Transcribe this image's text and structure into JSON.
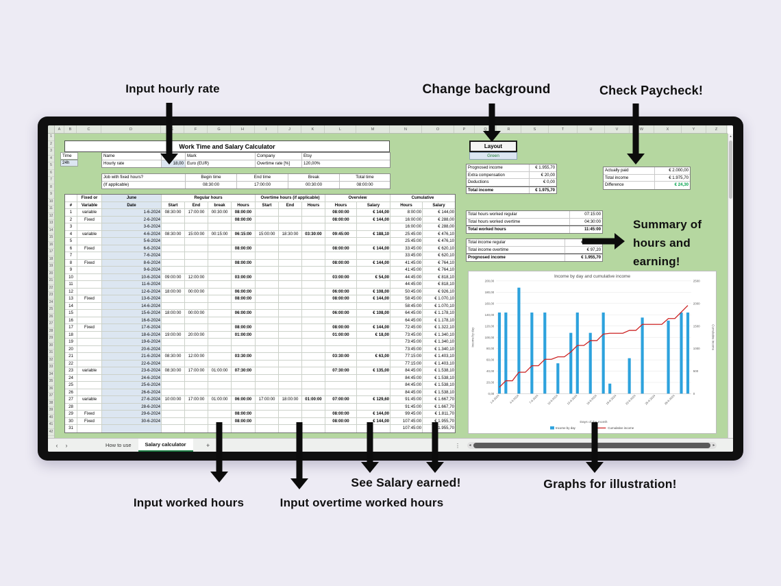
{
  "annotations": {
    "input_hourly_rate": "Input hourly rate",
    "change_background": "Change background",
    "check_paycheck": "Check Paycheck!",
    "summary": "Summary of hours and earning!",
    "input_worked_hours": "Input worked hours",
    "input_overtime_hours": "Input overtime worked hours",
    "see_salary": "See Salary earned!",
    "graphs": "Graphs for illustration!"
  },
  "colors": {
    "sheet_green": "#b5d7a0",
    "highlight_blue": "#dce6f1",
    "bar_blue": "#2da2dd",
    "line_red": "#cc2222",
    "tab_green": "#1e7e45",
    "positive_green": "#00a14b"
  },
  "spreadsheet": {
    "column_letters": [
      "A",
      "B",
      "C",
      "D",
      "E",
      "F",
      "G",
      "H",
      "I",
      "J",
      "K",
      "L",
      "M",
      "N",
      "O",
      "P",
      "Q",
      "R",
      "S",
      "T",
      "U",
      "V",
      "W",
      "X",
      "Y",
      "Z"
    ],
    "row_count": 42,
    "title": "Work Time and Salary Calculator",
    "time": {
      "label": "Time",
      "value": "24h"
    },
    "info": {
      "name_label": "Name",
      "name_value": "",
      "mark": "Mark",
      "company_label": "Company",
      "company_value": "Etsy",
      "hourly_rate_label": "Hourly rate",
      "hourly_rate_value": "18,00",
      "currency": "Euro (EUR)",
      "overtime_rate_label": "Overtime rate [%]",
      "overtime_rate_value": "120,00%"
    },
    "fixed_hours": {
      "q_label": "Job with fixed hours?",
      "if_applicable": "(If applicable)",
      "begin_label": "Begin time",
      "end_label": "End time",
      "break_label": "Break",
      "total_label": "Total time",
      "begin": "08:30:00",
      "end": "17:00:00",
      "break": "00:30:00",
      "total": "08:00:00"
    },
    "table": {
      "group_headers": [
        "",
        "Fixed or",
        "June",
        "Regular hours",
        "Overtime hours (if applicable)",
        "Overview",
        "Cumulative"
      ],
      "sub_headers": [
        "#",
        "Variable",
        "Date",
        "Start",
        "End",
        "break",
        "Hours",
        "Start",
        "End",
        "Hours",
        "Hours",
        "Salary",
        "Hours",
        "Salary"
      ],
      "rows": [
        [
          "1",
          "variable",
          "1-6-2024",
          "08:30:00",
          "17:00:00",
          "00:30:00",
          "08:00:00",
          "",
          "",
          "",
          "08:00:00",
          "€ 144,00",
          "8:00:00",
          "€ 144,00"
        ],
        [
          "2",
          "Fixed",
          "2-6-2024",
          "",
          "",
          "",
          "08:00:00",
          "",
          "",
          "",
          "08:00:00",
          "€ 144,00",
          "16:00:00",
          "€ 288,00"
        ],
        [
          "3",
          "",
          "3-6-2024",
          "",
          "",
          "",
          "",
          "",
          "",
          "",
          "",
          "",
          "16:00:00",
          "€ 288,00"
        ],
        [
          "4",
          "variable",
          "4-6-2024",
          "08:30:00",
          "15:00:00",
          "00:15:00",
          "06:15:00",
          "15:00:00",
          "18:30:00",
          "03:30:00",
          "09:45:00",
          "€ 188,10",
          "25:45:00",
          "€ 476,10"
        ],
        [
          "5",
          "",
          "5-6-2024",
          "",
          "",
          "",
          "",
          "",
          "",
          "",
          "",
          "",
          "25:45:00",
          "€ 476,10"
        ],
        [
          "6",
          "Fixed",
          "6-6-2024",
          "",
          "",
          "",
          "08:00:00",
          "",
          "",
          "",
          "08:00:00",
          "€ 144,00",
          "33:45:00",
          "€ 620,10"
        ],
        [
          "7",
          "",
          "7-6-2024",
          "",
          "",
          "",
          "",
          "",
          "",
          "",
          "",
          "",
          "33:45:00",
          "€ 620,10"
        ],
        [
          "8",
          "Fixed",
          "8-6-2024",
          "",
          "",
          "",
          "08:00:00",
          "",
          "",
          "",
          "08:00:00",
          "€ 144,00",
          "41:45:00",
          "€ 764,10"
        ],
        [
          "9",
          "",
          "9-6-2024",
          "",
          "",
          "",
          "",
          "",
          "",
          "",
          "",
          "",
          "41:45:00",
          "€ 764,10"
        ],
        [
          "10",
          "",
          "10-6-2024",
          "09:00:00",
          "12:00:00",
          "",
          "03:00:00",
          "",
          "",
          "",
          "03:00:00",
          "€ 54,00",
          "44:45:00",
          "€ 818,10"
        ],
        [
          "11",
          "",
          "11-6-2024",
          "",
          "",
          "",
          "",
          "",
          "",
          "",
          "",
          "",
          "44:45:00",
          "€ 818,10"
        ],
        [
          "12",
          "",
          "12-6-2024",
          "18:00:00",
          "00:00:00",
          "",
          "06:00:00",
          "",
          "",
          "",
          "06:00:00",
          "€ 108,00",
          "50:45:00",
          "€ 926,10"
        ],
        [
          "13",
          "Fixed",
          "13-6-2024",
          "",
          "",
          "",
          "08:00:00",
          "",
          "",
          "",
          "08:00:00",
          "€ 144,00",
          "58:45:00",
          "€ 1.070,10"
        ],
        [
          "14",
          "",
          "14-6-2024",
          "",
          "",
          "",
          "",
          "",
          "",
          "",
          "",
          "",
          "58:45:00",
          "€ 1.070,10"
        ],
        [
          "15",
          "",
          "15-6-2024",
          "18:00:00",
          "00:00:00",
          "",
          "06:00:00",
          "",
          "",
          "",
          "06:00:00",
          "€ 108,00",
          "64:45:00",
          "€ 1.178,10"
        ],
        [
          "16",
          "",
          "16-6-2024",
          "",
          "",
          "",
          "",
          "",
          "",
          "",
          "",
          "",
          "64:45:00",
          "€ 1.178,10"
        ],
        [
          "17",
          "Fixed",
          "17-6-2024",
          "",
          "",
          "",
          "08:00:00",
          "",
          "",
          "",
          "08:00:00",
          "€ 144,00",
          "72:45:00",
          "€ 1.322,10"
        ],
        [
          "18",
          "",
          "18-6-2024",
          "19:00:00",
          "20:00:00",
          "",
          "01:00:00",
          "",
          "",
          "",
          "01:00:00",
          "€ 18,00",
          "73:45:00",
          "€ 1.340,10"
        ],
        [
          "19",
          "",
          "19-6-2024",
          "",
          "",
          "",
          "",
          "",
          "",
          "",
          "",
          "",
          "73:45:00",
          "€ 1.340,10"
        ],
        [
          "20",
          "",
          "20-6-2024",
          "",
          "",
          "",
          "",
          "",
          "",
          "",
          "",
          "",
          "73:45:00",
          "€ 1.340,10"
        ],
        [
          "21",
          "",
          "21-6-2024",
          "08:30:00",
          "12:00:00",
          "",
          "03:30:00",
          "",
          "",
          "",
          "03:30:00",
          "€ 63,00",
          "77:15:00",
          "€ 1.403,10"
        ],
        [
          "22",
          "",
          "22-6-2024",
          "",
          "",
          "",
          "",
          "",
          "",
          "",
          "",
          "",
          "77:15:00",
          "€ 1.403,10"
        ],
        [
          "23",
          "variable",
          "23-6-2024",
          "08:30:00",
          "17:00:00",
          "01:00:00",
          "07:30:00",
          "",
          "",
          "",
          "07:30:00",
          "€ 135,00",
          "84:45:00",
          "€ 1.538,10"
        ],
        [
          "24",
          "",
          "24-6-2024",
          "",
          "",
          "",
          "",
          "",
          "",
          "",
          "",
          "",
          "84:45:00",
          "€ 1.538,10"
        ],
        [
          "25",
          "",
          "25-6-2024",
          "",
          "",
          "",
          "",
          "",
          "",
          "",
          "",
          "",
          "84:45:00",
          "€ 1.538,10"
        ],
        [
          "26",
          "",
          "26-6-2024",
          "",
          "",
          "",
          "",
          "",
          "",
          "",
          "",
          "",
          "84:45:00",
          "€ 1.538,10"
        ],
        [
          "27",
          "variable",
          "27-6-2024",
          "10:00:00",
          "17:00:00",
          "01:00:00",
          "06:00:00",
          "17:00:00",
          "18:00:00",
          "01:00:00",
          "07:00:00",
          "€ 129,60",
          "91:45:00",
          "€ 1.667,70"
        ],
        [
          "28",
          "",
          "28-6-2024",
          "",
          "",
          "",
          "",
          "",
          "",
          "",
          "",
          "",
          "91:45:00",
          "€ 1.667,70"
        ],
        [
          "29",
          "Fixed",
          "29-6-2024",
          "",
          "",
          "",
          "08:00:00",
          "",
          "",
          "",
          "08:00:00",
          "€ 144,00",
          "99:45:00",
          "€ 1.811,70"
        ],
        [
          "30",
          "Fixed",
          "30-6-2024",
          "",
          "",
          "",
          "08:00:00",
          "",
          "",
          "",
          "08:00:00",
          "€ 144,00",
          "107:45:00",
          "€ 1.955,70"
        ],
        [
          "31",
          "",
          "",
          "",
          "",
          "",
          "",
          "",
          "",
          "",
          "",
          "",
          "107:45:00",
          "€ 1.955,70"
        ]
      ]
    },
    "layout_button": {
      "label": "Layout",
      "value": "Green"
    },
    "boxes": {
      "income": [
        [
          "Prognosed income",
          "€ 1.955,70"
        ],
        [
          "Extra compensation",
          "€ 20,00"
        ],
        [
          "Deductions",
          "€ 0,00"
        ],
        [
          "Total income",
          "€ 1.975,70"
        ]
      ],
      "paycheck": [
        [
          "Actually paid",
          "€ 2.000,00"
        ],
        [
          "Total income",
          "€ 1.975,70"
        ],
        [
          "Difference",
          "€ 24,30"
        ]
      ],
      "hours": [
        [
          "Total hours worked regular",
          "07:15:00"
        ],
        [
          "Total hours worked overtime",
          "04:30:00"
        ],
        [
          "Total worked hours",
          "11:45:00"
        ]
      ],
      "totals": [
        [
          "Total income regular",
          "€ 1.858,50"
        ],
        [
          "Total income overtime",
          "€ 97,20"
        ],
        [
          "Prognosed income",
          "€ 1.955,70"
        ]
      ]
    },
    "tabs": {
      "nav_prev": "‹",
      "nav_next": "›",
      "sheet1": "How to use",
      "sheet2": "Salary calculator",
      "add": "+",
      "menu_dots": "⋮"
    }
  },
  "chart_data": {
    "type": "bar+line",
    "title": "Income by day and cumulative income",
    "xlabel": "Days of the month",
    "legend_position": "bottom",
    "x": [
      "1-6-2024",
      "2-6-2024",
      "3-6-2024",
      "4-6-2024",
      "5-6-2024",
      "6-6-2024",
      "7-6-2024",
      "8-6-2024",
      "9-6-2024",
      "10-6-2024",
      "11-6-2024",
      "12-6-2024",
      "13-6-2024",
      "14-6-2024",
      "15-6-2024",
      "16-6-2024",
      "17-6-2024",
      "18-6-2024",
      "19-6-2024",
      "20-6-2024",
      "21-6-2024",
      "22-6-2024",
      "23-6-2024",
      "24-6-2024",
      "25-6-2024",
      "26-6-2024",
      "27-6-2024",
      "28-6-2024",
      "29-6-2024",
      "30-6-2024"
    ],
    "series": [
      {
        "name": "Income by day",
        "type": "bar",
        "axis": "left",
        "color": "#2da2dd",
        "values": [
          144,
          144,
          0,
          188.1,
          0,
          144,
          0,
          144,
          0,
          54,
          0,
          108,
          144,
          0,
          108,
          0,
          144,
          18,
          0,
          0,
          63,
          0,
          135,
          0,
          0,
          0,
          129.6,
          0,
          144,
          144
        ]
      },
      {
        "name": "Cumulative income",
        "type": "line",
        "axis": "right",
        "color": "#cc2222",
        "values": [
          144,
          288,
          288,
          476.1,
          476.1,
          620.1,
          620.1,
          764.1,
          764.1,
          818.1,
          818.1,
          926.1,
          1070.1,
          1070.1,
          1178.1,
          1178.1,
          1322.1,
          1340.1,
          1340.1,
          1340.1,
          1403.1,
          1403.1,
          1538.1,
          1538.1,
          1538.1,
          1538.1,
          1667.7,
          1667.7,
          1811.7,
          1955.7
        ]
      }
    ],
    "left_axis": {
      "title": "Income by day",
      "min": 0,
      "max": 200,
      "step": 20,
      "tick_labels": [
        "0,00",
        "20,00",
        "40,00",
        "60,00",
        "80,00",
        "100,00",
        "120,00",
        "140,00",
        "160,00",
        "180,00",
        "200,00"
      ]
    },
    "right_axis": {
      "title": "Cumulative income",
      "min": 0,
      "max": 2500,
      "step": 500,
      "tick_labels": [
        "0",
        "500",
        "1000",
        "1500",
        "2000",
        "2500"
      ]
    }
  }
}
